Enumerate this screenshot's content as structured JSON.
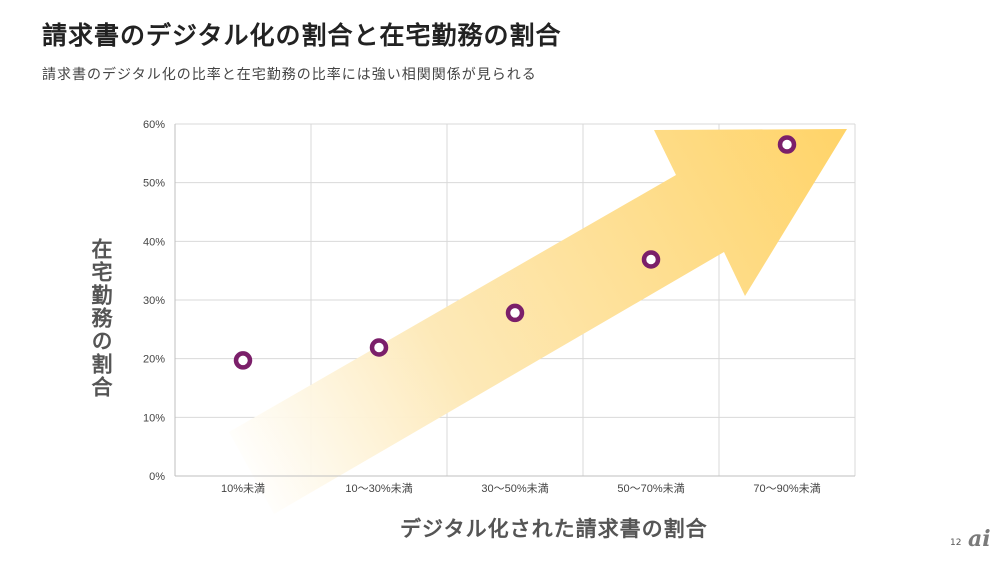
{
  "header": {
    "title": "請求書のデジタル化の割合と在宅勤務の割合",
    "subtitle": "請求書のデジタル化の比率と在宅勤務の比率には強い相関関係が見られる"
  },
  "footer": {
    "page_number": "12",
    "logo_text": "ai"
  },
  "colors": {
    "marker": "#7b1f6a",
    "arrow": "#ffd46a",
    "grid": "#d9d9d9"
  },
  "chart_data": {
    "type": "scatter",
    "title": "",
    "xlabel": "デジタル化された請求書の割合",
    "ylabel": "在宅勤務の割合",
    "categories": [
      "10%未満",
      "10〜30%未満",
      "30〜50%未満",
      "50〜70%未満",
      "70〜90%未満"
    ],
    "values": [
      19.7,
      21.9,
      27.8,
      36.9,
      56.5
    ],
    "yticks": [
      "0%",
      "10%",
      "20%",
      "30%",
      "40%",
      "50%",
      "60%"
    ],
    "ylim": [
      0,
      60
    ],
    "grid": true,
    "legend": "none",
    "annotation": "upward-trend-arrow"
  }
}
